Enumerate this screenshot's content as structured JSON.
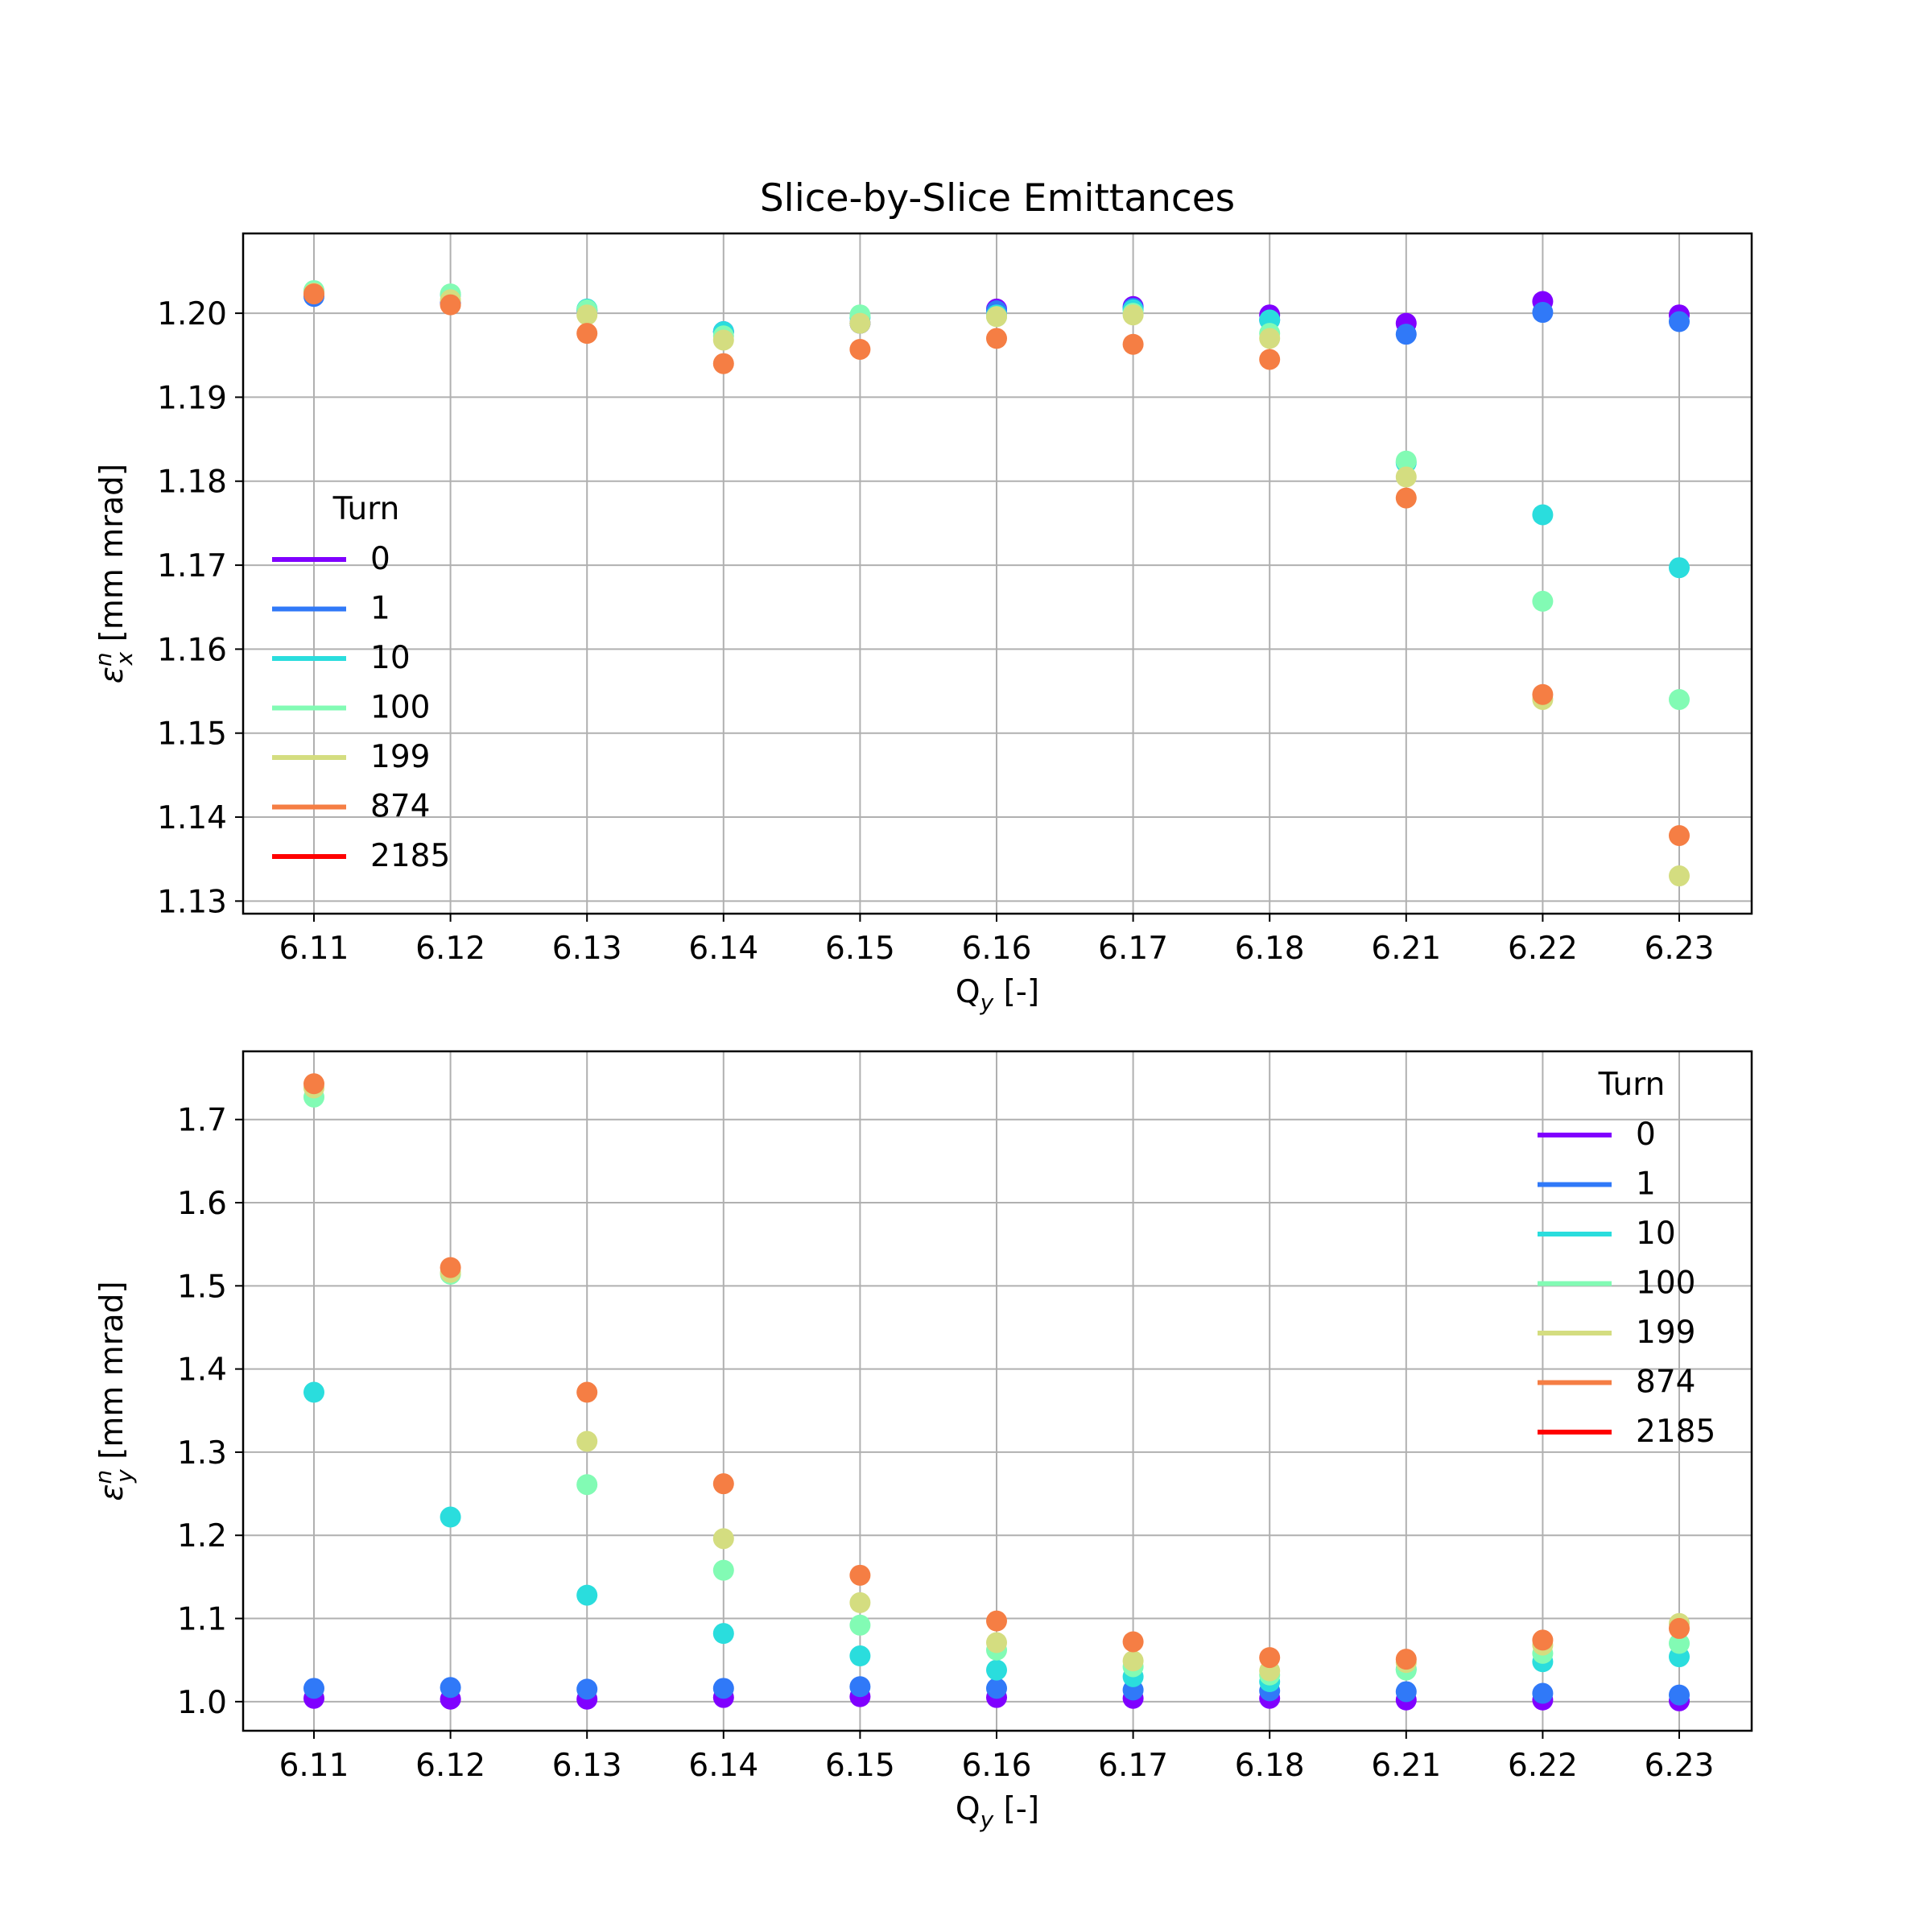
{
  "figure_title": "Slice-by-Slice Emittances",
  "turn_colors": {
    "0": "#8000ff",
    "1": "#3079f8",
    "10": "#2adddd",
    "100": "#82fbb4",
    "199": "#d4dd80",
    "874": "#f57e44",
    "2185": "#ff0000"
  },
  "chart_data": [
    {
      "type": "scatter",
      "title": "Slice-by-Slice Emittances",
      "xlabel": "Q_y [-]",
      "ylabel": "ε_x^n [mm mrad]",
      "categories": [
        "6.11",
        "6.12",
        "6.13",
        "6.14",
        "6.15",
        "6.16",
        "6.17",
        "6.18",
        "6.21",
        "6.22",
        "6.23"
      ],
      "ylim": [
        1.1285,
        1.2095
      ],
      "yticks": [
        1.13,
        1.14,
        1.15,
        1.16,
        1.17,
        1.18,
        1.19,
        1.2
      ],
      "ytick_labels": [
        "1.13",
        "1.14",
        "1.15",
        "1.16",
        "1.17",
        "1.18",
        "1.19",
        "1.20"
      ],
      "grid": true,
      "legend_title": "Turn",
      "legend_placement": "center-left",
      "legend": [
        "0",
        "1",
        "10",
        "100",
        "199",
        "874",
        "2185"
      ],
      "series": [
        {
          "name": "0",
          "values": [
            1.2022,
            1.2012,
            1.2003,
            1.1978,
            1.1988,
            1.2005,
            1.2008,
            1.1998,
            1.1988,
            1.2014,
            1.1998
          ]
        },
        {
          "name": "1",
          "values": [
            1.202,
            1.2012,
            1.2003,
            1.1978,
            1.1988,
            1.2003,
            1.2006,
            1.1992,
            1.1975,
            1.2001,
            1.199
          ]
        },
        {
          "name": "10",
          "values": [
            1.2026,
            1.2022,
            1.2005,
            1.1978,
            1.1995,
            1.1998,
            1.2004,
            1.1992,
            1.1822,
            1.176,
            1.1697
          ]
        },
        {
          "name": "100",
          "values": [
            1.2027,
            1.2023,
            1.2004,
            1.1973,
            1.1998,
            1.1996,
            1.2,
            1.1976,
            1.1824,
            1.1657,
            1.154
          ]
        },
        {
          "name": "199",
          "values": [
            1.2024,
            1.2016,
            1.1998,
            1.1968,
            1.1988,
            1.1996,
            1.1998,
            1.197,
            1.1805,
            1.154,
            1.133
          ]
        },
        {
          "name": "874",
          "values": [
            1.2023,
            1.201,
            1.1976,
            1.194,
            1.1957,
            1.197,
            1.1963,
            1.1945,
            1.178,
            1.1546,
            1.1378
          ]
        },
        {
          "name": "2185",
          "values": []
        }
      ]
    },
    {
      "type": "scatter",
      "title": "",
      "xlabel": "Q_y [-]",
      "ylabel": "ε_y^n [mm mrad]",
      "categories": [
        "6.11",
        "6.12",
        "6.13",
        "6.14",
        "6.15",
        "6.16",
        "6.17",
        "6.18",
        "6.21",
        "6.22",
        "6.23"
      ],
      "ylim": [
        0.965,
        1.782
      ],
      "yticks": [
        1.0,
        1.1,
        1.2,
        1.3,
        1.4,
        1.5,
        1.6,
        1.7
      ],
      "ytick_labels": [
        "1.0",
        "1.1",
        "1.2",
        "1.3",
        "1.4",
        "1.5",
        "1.6",
        "1.7"
      ],
      "grid": true,
      "legend_title": "Turn",
      "legend_placement": "upper-right",
      "legend": [
        "0",
        "1",
        "10",
        "100",
        "199",
        "874",
        "2185"
      ],
      "series": [
        {
          "name": "0",
          "values": [
            1.004,
            1.003,
            1.003,
            1.005,
            1.006,
            1.005,
            1.004,
            1.004,
            1.002,
            1.002,
            1.001
          ]
        },
        {
          "name": "1",
          "values": [
            1.016,
            1.017,
            1.015,
            1.016,
            1.018,
            1.016,
            1.014,
            1.013,
            1.012,
            1.01,
            1.008
          ]
        },
        {
          "name": "10",
          "values": [
            1.372,
            1.222,
            1.128,
            1.082,
            1.055,
            1.038,
            1.03,
            1.024,
            1.039,
            1.048,
            1.054
          ]
        },
        {
          "name": "100",
          "values": [
            1.727,
            1.514,
            1.261,
            1.158,
            1.092,
            1.062,
            1.042,
            1.032,
            1.038,
            1.058,
            1.07
          ]
        },
        {
          "name": "199",
          "values": [
            1.738,
            1.516,
            1.313,
            1.196,
            1.119,
            1.071,
            1.049,
            1.037,
            1.047,
            1.068,
            1.094
          ]
        },
        {
          "name": "874",
          "values": [
            1.743,
            1.522,
            1.372,
            1.262,
            1.152,
            1.097,
            1.072,
            1.053,
            1.051,
            1.074,
            1.088
          ]
        },
        {
          "name": "2185",
          "values": []
        }
      ]
    }
  ]
}
